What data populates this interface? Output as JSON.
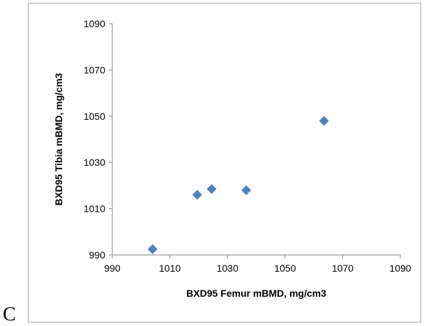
{
  "panel_label": "C",
  "chart_data": {
    "type": "scatter",
    "title": "",
    "xlabel": "BXD95 Femur mBMD, mg/cm3",
    "ylabel": "BXD95 Tibia mBMD, mg/cm3",
    "xlim": [
      990,
      1090
    ],
    "ylim": [
      990,
      1090
    ],
    "x_ticks": [
      990,
      1010,
      1030,
      1050,
      1070,
      1090
    ],
    "y_ticks": [
      990,
      1010,
      1030,
      1050,
      1070,
      1090
    ],
    "grid": false,
    "legend": "none",
    "marker": "diamond",
    "color": "#4f81bd",
    "series": [
      {
        "points": [
          {
            "x": 1004,
            "y": 992.5
          },
          {
            "x": 1019.5,
            "y": 1016
          },
          {
            "x": 1024.5,
            "y": 1018.5
          },
          {
            "x": 1036.5,
            "y": 1018
          },
          {
            "x": 1063.5,
            "y": 1048
          }
        ]
      }
    ]
  }
}
